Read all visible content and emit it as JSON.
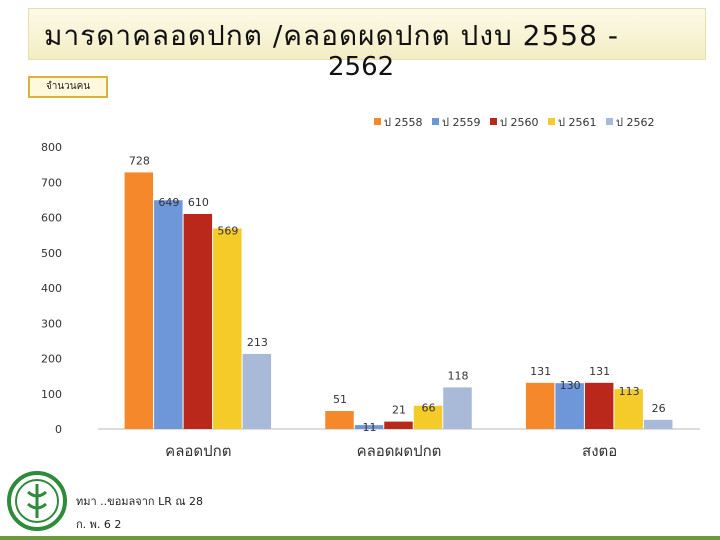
{
  "header": {
    "title": "มารดาคลอดปกต /คลอดผดปกต ปงบ 2558 -",
    "title_line2": "2562",
    "units_label": "จำนวนคน"
  },
  "footer": {
    "source": "ทมา ..ขอมลจาก LR ณ 28",
    "date": "ก. พ. 6 2"
  },
  "chart_data": {
    "type": "bar",
    "categories": [
      "คลอดปกต",
      "คลอดผดปกต",
      "สงตอ"
    ],
    "series": [
      {
        "name": "ป 2558",
        "values": [
          728,
          51,
          131
        ],
        "color": "#f5882b"
      },
      {
        "name": "ป 2559",
        "values": [
          649,
          11,
          130
        ],
        "color": "#6d97d9"
      },
      {
        "name": "ป 2560",
        "values": [
          610,
          21,
          131
        ],
        "color": "#b9281a"
      },
      {
        "name": "ป 2561",
        "values": [
          569,
          66,
          113
        ],
        "color": "#f5cb2a"
      },
      {
        "name": "ป 2562",
        "values": [
          213,
          118,
          26
        ],
        "color": "#a9b9d8"
      }
    ],
    "y_ticks": [
      0,
      100,
      200,
      300,
      400,
      500,
      600,
      700,
      800
    ],
    "ylim": [
      0,
      800
    ],
    "grid": false,
    "legend_position": "top-right"
  }
}
